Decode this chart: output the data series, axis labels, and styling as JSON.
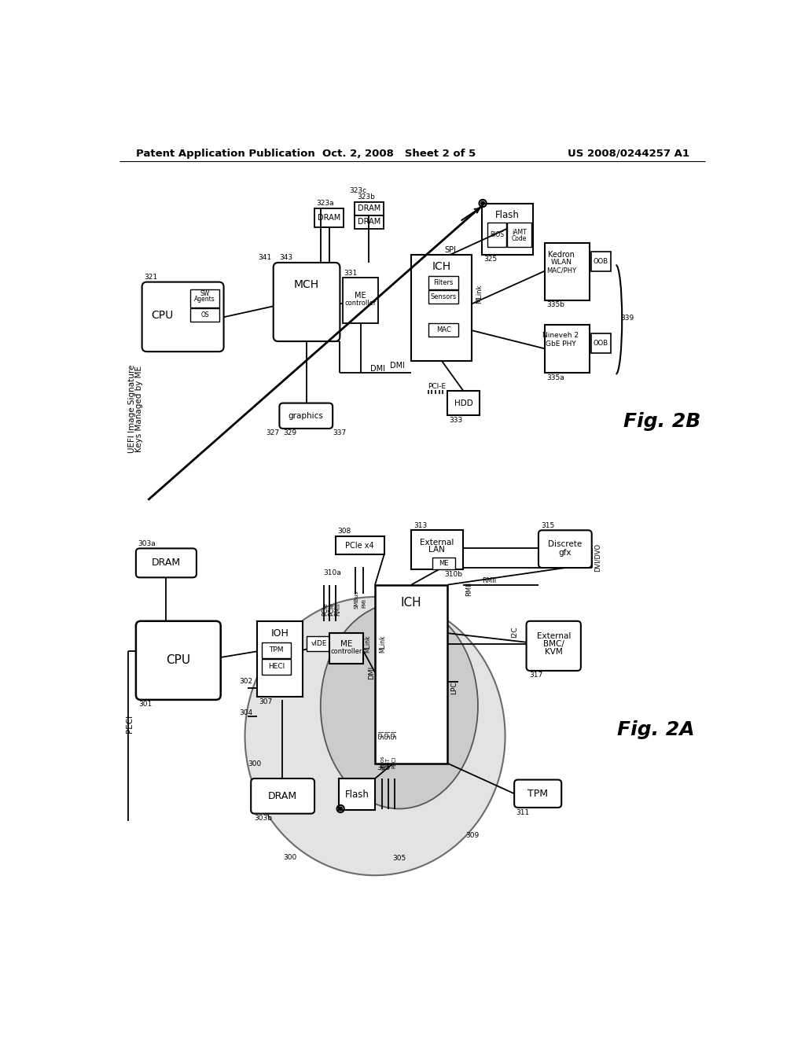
{
  "header_left": "Patent Application Publication",
  "header_center": "Oct. 2, 2008   Sheet 2 of 5",
  "header_right": "US 2008/0244257 A1",
  "fig2b": "Fig. 2B",
  "fig2a": "Fig. 2A",
  "uefi_line1": "UEFI Image Signature",
  "uefi_line2": "Keys Managed by ME"
}
